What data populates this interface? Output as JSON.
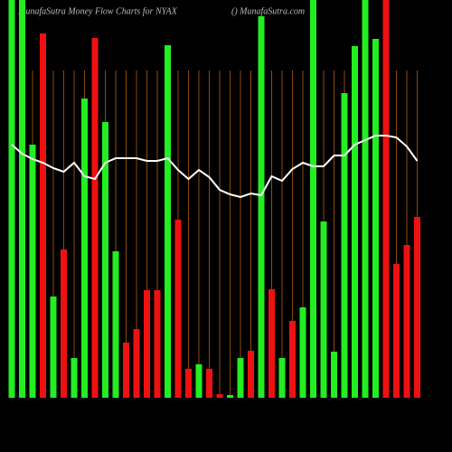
{
  "chart_data": {
    "type": "bar",
    "title": "MunafaSutra  Money Flow  Charts for NYAX",
    "subtitle": "() MunafaSutra.com",
    "categories": [
      null,
      null,
      null,
      null,
      null,
      null,
      null,
      null,
      null,
      null,
      null,
      null,
      null,
      null,
      null,
      null,
      null,
      null,
      null,
      null,
      null,
      null,
      null,
      null,
      null,
      null,
      null,
      null,
      null,
      null,
      null,
      null,
      null,
      null,
      null,
      null,
      null,
      null,
      null,
      null
    ],
    "ylim": [
      0,
      440
    ],
    "grid_color": "#8b4a0f",
    "series": [
      {
        "type": "bar",
        "values": [
          440,
          440,
          280,
          403,
          112,
          164,
          44,
          331,
          398,
          305,
          162,
          61,
          76,
          119,
          119,
          390,
          197,
          32,
          37,
          32,
          4,
          3,
          44,
          52,
          422,
          120,
          44,
          85,
          100,
          440,
          195,
          51,
          337,
          389,
          440,
          397,
          440,
          148,
          169,
          200
        ],
        "colors": [
          "#22ee22",
          "#22ee22",
          "#22ee22",
          "#ee1111",
          "#22ee22",
          "#ee1111",
          "#22ee22",
          "#22ee22",
          "#ee1111",
          "#22ee22",
          "#22ee22",
          "#ee1111",
          "#ee1111",
          "#ee1111",
          "#ee1111",
          "#22ee22",
          "#ee1111",
          "#ee1111",
          "#22ee22",
          "#ee1111",
          "#ee1111",
          "#22ee22",
          "#22ee22",
          "#ee1111",
          "#22ee22",
          "#ee1111",
          "#22ee22",
          "#ee1111",
          "#22ee22",
          "#22ee22",
          "#22ee22",
          "#22ee22",
          "#22ee22",
          "#22ee22",
          "#22ee22",
          "#22ee22",
          "#ee1111",
          "#ee1111",
          "#ee1111",
          "#ee1111"
        ]
      },
      {
        "type": "line",
        "color": "#ffffff",
        "values": [
          280,
          270,
          264,
          260,
          254,
          250,
          260,
          245,
          242,
          260,
          265,
          265,
          265,
          262,
          262,
          265,
          252,
          242,
          252,
          244,
          230,
          225,
          222,
          226,
          224,
          245,
          240,
          253,
          260,
          256,
          256,
          268,
          268,
          280,
          285,
          290,
          290,
          288,
          278,
          262
        ]
      }
    ]
  }
}
